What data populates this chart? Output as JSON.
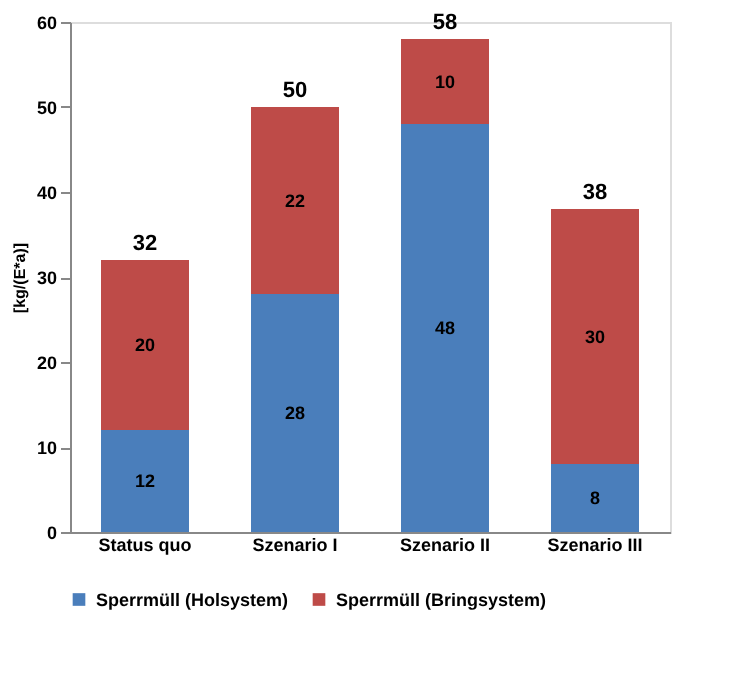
{
  "chart_data": {
    "type": "bar",
    "stacked": true,
    "ylabel": "[kg/(E*a)]",
    "categories": [
      "Status quo",
      "Szenario I",
      "Szenario II",
      "Szenario III"
    ],
    "series": [
      {
        "name": "Sperrmüll (Holsystem)",
        "color": "#4a7ebb",
        "values": [
          12,
          28,
          48,
          8
        ]
      },
      {
        "name": "Sperrmüll (Bringsystem)",
        "color": "#be4b48",
        "values": [
          20,
          22,
          10,
          30
        ]
      }
    ],
    "totals": [
      "32",
      "50",
      "58",
      "38"
    ],
    "data_labels": true,
    "ylim": [
      0,
      60
    ],
    "yticks": [
      0,
      10,
      20,
      30,
      40,
      50,
      60
    ],
    "grid": false,
    "legend": "bottom"
  }
}
